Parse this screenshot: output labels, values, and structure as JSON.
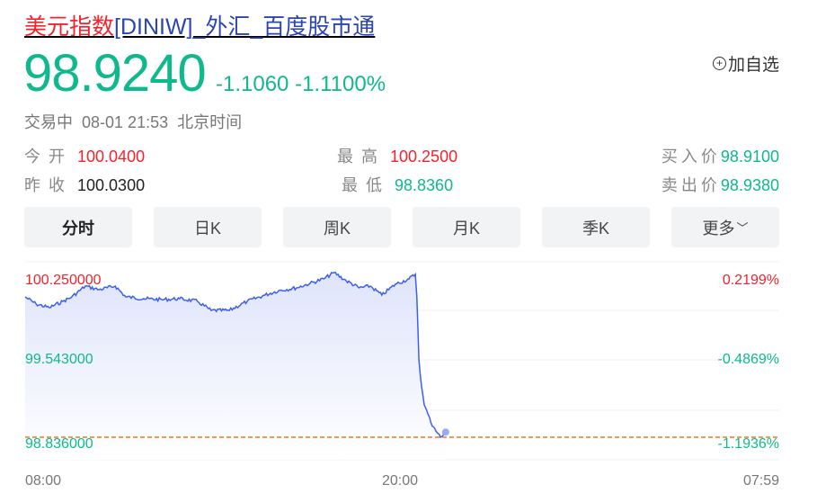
{
  "header": {
    "title_cn": "美元指数",
    "title_rest": "[DINIW]_外汇_百度股市通",
    "price": "98.9240",
    "change": "-1.1060",
    "change_pct": "-1.1100%",
    "add_watch": "加自选",
    "status": "交易中",
    "datetime": "08-01 21:53",
    "tz": "北京时间"
  },
  "quote": {
    "open_label": "今开",
    "open": "100.0400",
    "prev_label": "昨收",
    "prev": "100.0300",
    "high_label": "最高",
    "high": "100.2500",
    "low_label": "最低",
    "low": "98.8360",
    "bid_label": "买入价",
    "bid": "98.9100",
    "ask_label": "卖出价",
    "ask": "98.9380"
  },
  "tabs": [
    {
      "label": "分时",
      "active": true
    },
    {
      "label": "日K"
    },
    {
      "label": "周K"
    },
    {
      "label": "月K"
    },
    {
      "label": "季K"
    },
    {
      "label": "更多"
    }
  ],
  "colors": {
    "up": "#f5222d",
    "down": "#0fb98b",
    "line": "#3d5ff0",
    "ref": "#f07a1a"
  },
  "chart_data": {
    "type": "area",
    "y_left_ticks": [
      "100.250000",
      "99.543000",
      "98.836000"
    ],
    "y_right_ticks": [
      "0.2199%",
      "-0.4869%",
      "-1.1936%"
    ],
    "x_ticks": [
      "08:00",
      "20:00",
      "07:59"
    ],
    "ylim": [
      98.836,
      100.25
    ],
    "xrange": [
      "08:00",
      "07:59"
    ],
    "reference_line": 98.836,
    "grid": true,
    "series": [
      [
        "08:00",
        100.041
      ],
      [
        "08:21",
        99.98
      ],
      [
        "08:46",
        99.949
      ],
      [
        "09:12",
        100.003
      ],
      [
        "09:29",
        100.041
      ],
      [
        "09:55",
        100.134
      ],
      [
        "10:21",
        100.103
      ],
      [
        "10:52",
        100.134
      ],
      [
        "11:12",
        100.041
      ],
      [
        "11:46",
        100.026
      ],
      [
        "12:21",
        100.018
      ],
      [
        "12:55",
        100.026
      ],
      [
        "13:29",
        100.003
      ],
      [
        "13:55",
        99.925
      ],
      [
        "14:30",
        99.925
      ],
      [
        "15:04",
        100.003
      ],
      [
        "15:38",
        100.057
      ],
      [
        "16:04",
        100.095
      ],
      [
        "16:38",
        100.119
      ],
      [
        "17:04",
        100.157
      ],
      [
        "17:30",
        100.196
      ],
      [
        "17:50",
        100.25
      ],
      [
        "18:13",
        100.18
      ],
      [
        "18:38",
        100.119
      ],
      [
        "18:59",
        100.134
      ],
      [
        "19:21",
        100.057
      ],
      [
        "19:47",
        100.15
      ],
      [
        "20:13",
        100.196
      ],
      [
        "20:25",
        100.235
      ],
      [
        "20:28",
        100.041
      ],
      [
        "20:32",
        99.5
      ],
      [
        "20:37",
        99.269
      ],
      [
        "20:42",
        99.114
      ],
      [
        "20:49",
        99.037
      ],
      [
        "20:55",
        98.96
      ],
      [
        "21:02",
        98.913
      ],
      [
        "21:09",
        98.867
      ],
      [
        "21:13",
        98.836
      ],
      [
        "21:18",
        98.851
      ],
      [
        "21:23",
        98.88
      ]
    ]
  }
}
